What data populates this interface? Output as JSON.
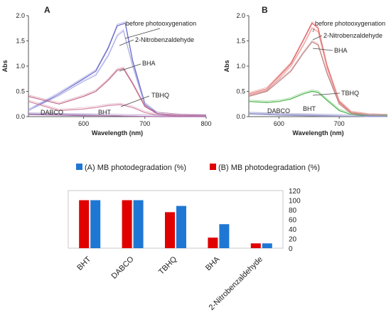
{
  "colors": {
    "series_a": "#1f77d4",
    "series_b": "#e00000",
    "axis": "#555555"
  },
  "chart_data": [
    {
      "panel_label": "A",
      "type": "line",
      "xlabel": "Wavelength (nm)",
      "ylabel": "Abs",
      "xlim": [
        510,
        800
      ],
      "ylim": [
        0,
        2.0
      ],
      "xticks": [
        600,
        700,
        800
      ],
      "yticks": [
        0.0,
        0.5,
        1.0,
        1.5,
        2.0
      ],
      "series": [
        {
          "name": "before photooxygenation",
          "color": "#6666cc",
          "x": [
            510,
            560,
            600,
            620,
            640,
            655,
            668,
            680,
            700,
            720,
            760,
            800
          ],
          "y": [
            0.12,
            0.45,
            0.75,
            0.9,
            1.35,
            1.8,
            1.85,
            1.1,
            0.25,
            0.06,
            0.02,
            0.01
          ]
        },
        {
          "name": "2-Nitrobenzaldehyde",
          "color": "#b0b0e8",
          "x": [
            510,
            560,
            600,
            620,
            640,
            655,
            665,
            680,
            700,
            720,
            760,
            800
          ],
          "y": [
            0.12,
            0.42,
            0.7,
            0.82,
            1.2,
            1.6,
            1.7,
            1.0,
            0.22,
            0.05,
            0.02,
            0.01
          ]
        },
        {
          "name": "BHA",
          "color": "#c06080",
          "x": [
            510,
            560,
            600,
            620,
            640,
            655,
            665,
            680,
            700,
            720,
            760,
            800
          ],
          "y": [
            0.4,
            0.25,
            0.4,
            0.5,
            0.72,
            0.92,
            0.95,
            0.65,
            0.2,
            0.06,
            0.02,
            0.01
          ]
        },
        {
          "name": "TBHQ",
          "color": "#d080a0",
          "x": [
            510,
            560,
            600,
            620,
            640,
            660,
            680,
            700,
            720,
            760,
            800
          ],
          "y": [
            0.3,
            0.12,
            0.15,
            0.18,
            0.22,
            0.24,
            0.18,
            0.08,
            0.03,
            0.01,
            0.0
          ]
        },
        {
          "name": "DABCO",
          "color": "#9090c0",
          "x": [
            510,
            560,
            600,
            640,
            680,
            720,
            760,
            800
          ],
          "y": [
            0.05,
            0.04,
            0.03,
            0.02,
            0.01,
            0.0,
            0.0,
            0.0
          ]
        },
        {
          "name": "BHT",
          "color": "#b070b0",
          "x": [
            510,
            560,
            600,
            640,
            680,
            720,
            760,
            800
          ],
          "y": [
            0.04,
            0.03,
            0.02,
            0.02,
            0.01,
            0.0,
            0.0,
            0.0
          ]
        }
      ]
    },
    {
      "panel_label": "B",
      "type": "line",
      "xlabel": "Wavelength (nm)",
      "ylabel": "Abs",
      "xlim": [
        550,
        780
      ],
      "ylim": [
        0,
        2.0
      ],
      "xticks": [
        600,
        700
      ],
      "yticks": [
        0.0,
        0.5,
        1.0,
        1.5,
        2.0
      ],
      "series": [
        {
          "name": "before photooxygenation",
          "color": "#e06060",
          "x": [
            550,
            580,
            600,
            620,
            640,
            655,
            665,
            680,
            700,
            720,
            750,
            780
          ],
          "y": [
            0.45,
            0.55,
            0.8,
            1.05,
            1.5,
            1.85,
            1.75,
            1.0,
            0.3,
            0.08,
            0.03,
            0.02
          ]
        },
        {
          "name": "2-Nitrobenzaldehyde",
          "color": "#f0a0a0",
          "x": [
            550,
            580,
            600,
            620,
            640,
            655,
            665,
            680,
            700,
            720,
            750,
            780
          ],
          "y": [
            0.42,
            0.52,
            0.75,
            1.0,
            1.4,
            1.75,
            1.68,
            0.95,
            0.28,
            0.07,
            0.03,
            0.02
          ]
        },
        {
          "name": "BHA",
          "color": "#c08080",
          "x": [
            550,
            580,
            600,
            620,
            640,
            655,
            665,
            680,
            700,
            720,
            750,
            780
          ],
          "y": [
            0.4,
            0.5,
            0.7,
            0.9,
            1.25,
            1.48,
            1.42,
            0.85,
            0.25,
            0.06,
            0.02,
            0.01
          ]
        },
        {
          "name": "TBHQ",
          "color": "#40b040",
          "x": [
            550,
            580,
            600,
            620,
            640,
            655,
            665,
            680,
            700,
            720,
            750,
            780
          ],
          "y": [
            0.3,
            0.28,
            0.3,
            0.35,
            0.45,
            0.5,
            0.48,
            0.32,
            0.12,
            0.04,
            0.01,
            0.01
          ]
        },
        {
          "name": "DABCO",
          "color": "#8888c8",
          "x": [
            550,
            580,
            600,
            640,
            680,
            720,
            750,
            780
          ],
          "y": [
            0.06,
            0.05,
            0.04,
            0.03,
            0.02,
            0.01,
            0.01,
            0.0
          ]
        },
        {
          "name": "BHT",
          "color": "#a0a0d0",
          "x": [
            550,
            580,
            600,
            640,
            680,
            720,
            750,
            780
          ],
          "y": [
            0.05,
            0.04,
            0.03,
            0.02,
            0.01,
            0.01,
            0.0,
            0.0
          ]
        }
      ]
    },
    {
      "type": "bar",
      "categories": [
        "BHT",
        "DABCO",
        "TBHQ",
        "BHA",
        "2-Nitrobenzaldehyde"
      ],
      "ylim": [
        0,
        120
      ],
      "yticks": [
        0,
        20,
        40,
        60,
        80,
        100,
        120
      ],
      "legend_position": "top",
      "series": [
        {
          "name": "(A) MB photodegradation (%)",
          "color": "#1f77d4",
          "values": [
            100,
            100,
            88,
            50,
            10
          ]
        },
        {
          "name": "(B) MB photodegradation (%)",
          "color": "#e00000",
          "values": [
            100,
            100,
            75,
            22,
            10
          ]
        }
      ]
    }
  ]
}
